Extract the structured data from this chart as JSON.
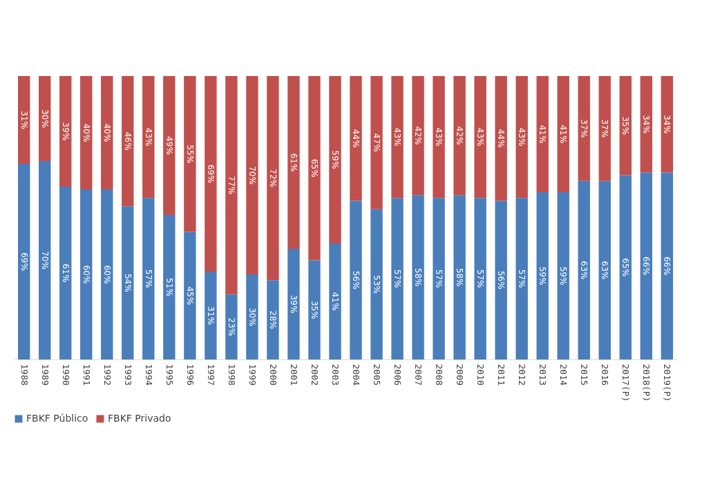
{
  "chart_data": {
    "type": "bar",
    "stacked": true,
    "legend": "bottom",
    "grid": false,
    "categories": [
      "1988",
      "1989",
      "1990",
      "1991",
      "1992",
      "1993",
      "1994",
      "1995",
      "1996",
      "1997",
      "1998",
      "1999",
      "2000",
      "2001",
      "2002",
      "2003",
      "2004",
      "2005",
      "2006",
      "2007",
      "2008",
      "2009",
      "2010",
      "2011",
      "2012",
      "2013",
      "2014",
      "2015",
      "2016",
      "2017(P)",
      "2018(P)",
      "2019(P)"
    ],
    "series": [
      {
        "name": "FBKF Público",
        "color": "#4a7ebb",
        "values": [
          69,
          70,
          61,
          60,
          60,
          54,
          57,
          51,
          45,
          31,
          23,
          30,
          28,
          39,
          35,
          41,
          56,
          53,
          57,
          58,
          57,
          58,
          57,
          56,
          57,
          59,
          59,
          63,
          63,
          65,
          66,
          66
        ],
        "value_labels": [
          "69%",
          "70%",
          "61%",
          "60%",
          "60%",
          "54%",
          "57%",
          "51%",
          "45%",
          "31%",
          "23%",
          "30%",
          "28%",
          "39%",
          "35%",
          "41%",
          "56%",
          "53%",
          "57%",
          "58%",
          "57%",
          "58%",
          "57%",
          "56%",
          "57%",
          "59%",
          "59%",
          "63%",
          "63%",
          "65%",
          "66%",
          "66%"
        ]
      },
      {
        "name": "FBKF Privado",
        "color": "#c0504d",
        "values": [
          31,
          30,
          39,
          40,
          40,
          46,
          43,
          49,
          55,
          69,
          77,
          70,
          72,
          61,
          65,
          59,
          44,
          47,
          43,
          42,
          43,
          42,
          43,
          44,
          43,
          41,
          41,
          37,
          37,
          35,
          34,
          34
        ],
        "value_labels": [
          "31%",
          "30%",
          "39%",
          "40%",
          "40%",
          "46%",
          "43%",
          "49%",
          "55%",
          "69%",
          "77%",
          "70%",
          "72%",
          "61%",
          "65%",
          "59%",
          "44%",
          "47%",
          "43%",
          "42%",
          "43%",
          "42%",
          "43%",
          "44%",
          "43%",
          "41%",
          "41%",
          "37%",
          "37%",
          "35%",
          "34%",
          "34%"
        ]
      }
    ]
  }
}
